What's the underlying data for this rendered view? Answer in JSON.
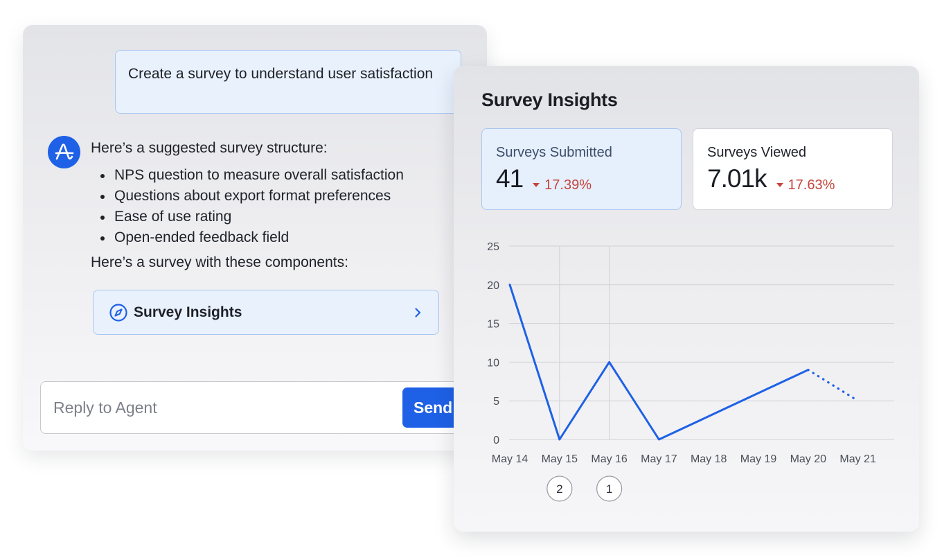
{
  "chat": {
    "user_message": "Create a survey to understand user satisfaction",
    "agent_intro": "Here’s a suggested survey structure:",
    "agent_bullets": [
      "NPS question to measure overall satisfaction",
      "Questions about export format preferences",
      "Ease of use rating",
      "Open-ended feedback field"
    ],
    "agent_outro": "Here’s a survey with these components:",
    "insight_link_label": "Survey Insights",
    "reply_placeholder": "Reply to Agent",
    "send_label": "Send",
    "icons": {
      "avatar": "amplitude-logo-icon",
      "link": "compass-icon",
      "chevron": "chevron-right-icon"
    }
  },
  "insights": {
    "title": "Survey Insights",
    "metrics": [
      {
        "label": "Surveys Submitted",
        "value": "41",
        "change": "17.39%",
        "direction": "down",
        "selected": true
      },
      {
        "label": "Surveys Viewed",
        "value": "7.01k",
        "change": "17.63%",
        "direction": "down",
        "selected": false
      }
    ]
  },
  "colors": {
    "accent": "#1e61e6",
    "negative": "#c4453c",
    "selected_card_bg": "#e6effc",
    "selected_card_border": "#a9c6f1"
  },
  "chart_data": {
    "type": "line",
    "categories": [
      "May 14",
      "May 15",
      "May 16",
      "May 17",
      "May 18",
      "May 19",
      "May 20",
      "May 21"
    ],
    "series": [
      {
        "values": [
          20,
          0,
          10,
          0,
          3,
          6,
          9,
          5
        ],
        "projected_from_index": 6
      }
    ],
    "ylim": [
      0,
      25
    ],
    "yticks": [
      0,
      5,
      10,
      15,
      20,
      25
    ],
    "grid": true,
    "annotations": [
      {
        "category": "May 15",
        "label": "2"
      },
      {
        "category": "May 16",
        "label": "1"
      }
    ]
  }
}
